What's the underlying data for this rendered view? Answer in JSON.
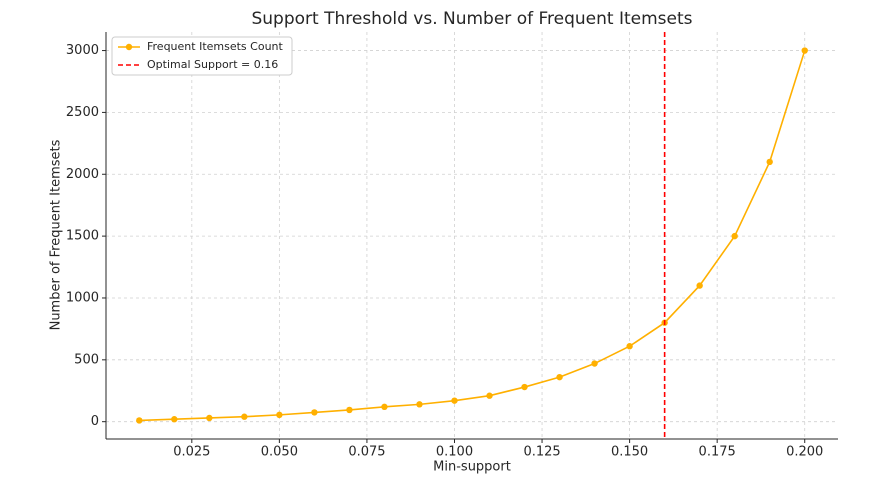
{
  "chart_data": {
    "type": "line",
    "title": "Support Threshold vs. Number of Frequent Itemsets",
    "x_label": "Min-support",
    "y_label": "Number of Frequent Itemsets",
    "x": [
      0.01,
      0.02,
      0.03,
      0.04,
      0.05,
      0.06,
      0.07,
      0.08,
      0.09,
      0.1,
      0.11,
      0.12,
      0.13,
      0.14,
      0.15,
      0.16,
      0.17,
      0.18,
      0.19,
      0.2
    ],
    "series": [
      {
        "name": "Frequent Itemsets Count",
        "color": "#ffb000",
        "values": [
          10,
          20,
          30,
          40,
          55,
          75,
          95,
          120,
          140,
          170,
          210,
          280,
          360,
          470,
          610,
          800,
          1100,
          1500,
          2100,
          3000
        ]
      }
    ],
    "reference_line": {
      "name": "Optimal Support = 0.16",
      "x": 0.16,
      "color": "#ff0000"
    },
    "xlim": [
      0.0005,
      0.2095
    ],
    "ylim": [
      -140,
      3150
    ],
    "xticks": [
      0.025,
      {
        "value": 0.05,
        "label": "0.050"
      },
      0.075,
      {
        "value": 0.1,
        "label": "0.100"
      },
      0.125,
      {
        "value": 0.15,
        "label": "0.150"
      },
      0.175,
      {
        "value": 0.2,
        "label": "0.200"
      }
    ],
    "yticks": [
      0,
      500,
      1000,
      1500,
      2000,
      2500,
      3000
    ],
    "grid": true,
    "legend": "upper-left"
  }
}
